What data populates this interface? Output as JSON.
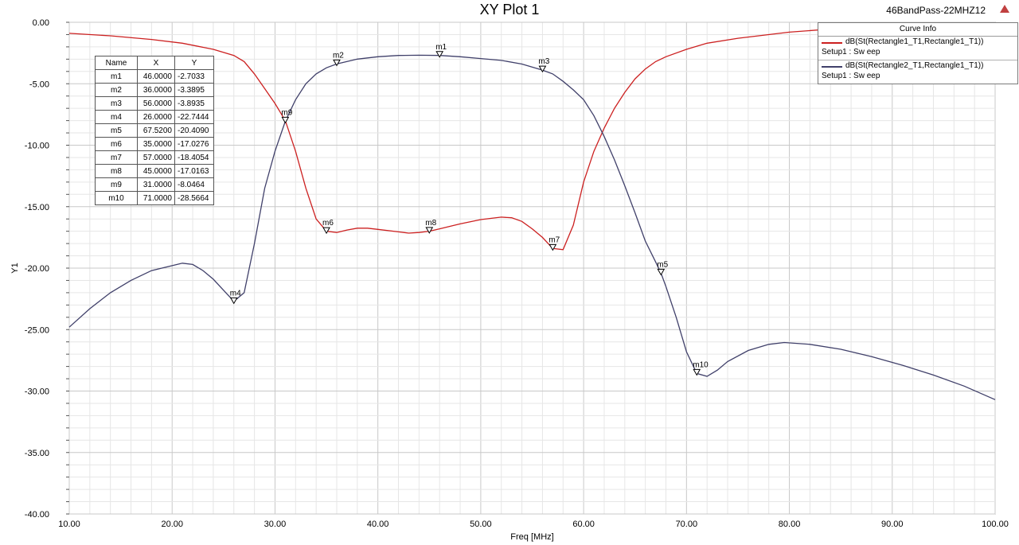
{
  "chart_data": {
    "type": "line",
    "title": "XY Plot 1",
    "project_name": "46BandPass-22MHZ12",
    "xlabel": "Freq [MHz]",
    "ylabel": "Y1",
    "xlim": [
      10,
      100
    ],
    "ylim": [
      -40,
      0
    ],
    "x_ticks": [
      "10.00",
      "20.00",
      "30.00",
      "40.00",
      "50.00",
      "60.00",
      "70.00",
      "80.00",
      "90.00",
      "100.00"
    ],
    "y_ticks": [
      "0.00",
      "-5.00",
      "-10.00",
      "-15.00",
      "-20.00",
      "-25.00",
      "-30.00",
      "-35.00",
      "-40.00"
    ],
    "grid": true,
    "legend": {
      "title": "Curve Info",
      "placement": "top-right",
      "entries": [
        {
          "name": "dB(St(Rectangle1_T1,Rectangle1_T1))",
          "sub": "Setup1 : Sw eep",
          "color": "#cc2020"
        },
        {
          "name": "dB(St(Rectangle2_T1,Rectangle1_T1))",
          "sub": "Setup1 : Sw eep",
          "color": "#40406a"
        }
      ]
    },
    "series": [
      {
        "color": "#cc2020",
        "points": [
          [
            10,
            -0.9
          ],
          [
            14,
            -1.1
          ],
          [
            18,
            -1.4
          ],
          [
            21,
            -1.7
          ],
          [
            24,
            -2.2
          ],
          [
            26,
            -2.7
          ],
          [
            27,
            -3.2
          ],
          [
            28,
            -4.2
          ],
          [
            29,
            -5.4
          ],
          [
            30,
            -6.6
          ],
          [
            31,
            -8.0
          ],
          [
            32,
            -10.5
          ],
          [
            33,
            -13.5
          ],
          [
            34,
            -16.0
          ],
          [
            35,
            -17.0
          ],
          [
            36,
            -17.1
          ],
          [
            37,
            -16.9
          ],
          [
            38,
            -16.75
          ],
          [
            39,
            -16.75
          ],
          [
            40,
            -16.85
          ],
          [
            42,
            -17.05
          ],
          [
            43,
            -17.15
          ],
          [
            44,
            -17.1
          ],
          [
            45,
            -17.0
          ],
          [
            46,
            -16.8
          ],
          [
            48,
            -16.4
          ],
          [
            50,
            -16.05
          ],
          [
            52,
            -15.85
          ],
          [
            53,
            -15.9
          ],
          [
            54,
            -16.2
          ],
          [
            55,
            -16.8
          ],
          [
            56,
            -17.5
          ],
          [
            57,
            -18.4
          ],
          [
            58,
            -18.5
          ],
          [
            59,
            -16.5
          ],
          [
            60,
            -13.0
          ],
          [
            61,
            -10.5
          ],
          [
            62,
            -8.6
          ],
          [
            63,
            -7.0
          ],
          [
            64,
            -5.7
          ],
          [
            65,
            -4.6
          ],
          [
            66,
            -3.8
          ],
          [
            67,
            -3.2
          ],
          [
            68,
            -2.8
          ],
          [
            70,
            -2.2
          ],
          [
            72,
            -1.7
          ],
          [
            75,
            -1.3
          ],
          [
            80,
            -0.8
          ],
          [
            84,
            -0.55
          ]
        ]
      },
      {
        "color": "#40406a",
        "points": [
          [
            10,
            -24.8
          ],
          [
            12,
            -23.3
          ],
          [
            14,
            -22.0
          ],
          [
            16,
            -21.0
          ],
          [
            18,
            -20.2
          ],
          [
            20,
            -19.8
          ],
          [
            21,
            -19.6
          ],
          [
            22,
            -19.7
          ],
          [
            23,
            -20.2
          ],
          [
            24,
            -20.9
          ],
          [
            25,
            -21.8
          ],
          [
            26,
            -22.7
          ],
          [
            27,
            -22.0
          ],
          [
            28,
            -18.0
          ],
          [
            29,
            -13.5
          ],
          [
            30,
            -10.5
          ],
          [
            31,
            -8.05
          ],
          [
            32,
            -6.3
          ],
          [
            33,
            -5.0
          ],
          [
            34,
            -4.2
          ],
          [
            35,
            -3.7
          ],
          [
            36,
            -3.39
          ],
          [
            38,
            -3.0
          ],
          [
            40,
            -2.8
          ],
          [
            42,
            -2.7
          ],
          [
            44,
            -2.68
          ],
          [
            46,
            -2.7
          ],
          [
            48,
            -2.8
          ],
          [
            50,
            -2.95
          ],
          [
            52,
            -3.1
          ],
          [
            54,
            -3.4
          ],
          [
            56,
            -3.89
          ],
          [
            57,
            -4.2
          ],
          [
            58,
            -4.8
          ],
          [
            59,
            -5.5
          ],
          [
            60,
            -6.3
          ],
          [
            61,
            -7.6
          ],
          [
            62,
            -9.3
          ],
          [
            63,
            -11.2
          ],
          [
            64,
            -13.3
          ],
          [
            65,
            -15.5
          ],
          [
            66,
            -17.8
          ],
          [
            67,
            -19.5
          ],
          [
            67.52,
            -20.41
          ],
          [
            68,
            -21.5
          ],
          [
            69,
            -24.0
          ],
          [
            70,
            -26.8
          ],
          [
            71,
            -28.57
          ],
          [
            72,
            -28.8
          ],
          [
            73,
            -28.3
          ],
          [
            74,
            -27.6
          ],
          [
            76,
            -26.7
          ],
          [
            78,
            -26.2
          ],
          [
            79.5,
            -26.05
          ],
          [
            82,
            -26.2
          ],
          [
            85,
            -26.6
          ],
          [
            88,
            -27.2
          ],
          [
            91,
            -27.9
          ],
          [
            94,
            -28.7
          ],
          [
            97,
            -29.6
          ],
          [
            100,
            -30.7
          ]
        ]
      }
    ],
    "markers": [
      {
        "name": "m1",
        "x": 46.0,
        "y": -2.7033,
        "curve": 1
      },
      {
        "name": "m2",
        "x": 36.0,
        "y": -3.3895,
        "curve": 1
      },
      {
        "name": "m3",
        "x": 56.0,
        "y": -3.8935,
        "curve": 1
      },
      {
        "name": "m4",
        "x": 26.0,
        "y": -22.7444,
        "curve": 1
      },
      {
        "name": "m5",
        "x": 67.52,
        "y": -20.409,
        "curve": 1
      },
      {
        "name": "m6",
        "x": 35.0,
        "y": -17.0276,
        "curve": 0
      },
      {
        "name": "m7",
        "x": 57.0,
        "y": -18.4054,
        "curve": 0
      },
      {
        "name": "m8",
        "x": 45.0,
        "y": -17.0163,
        "curve": 0
      },
      {
        "name": "m9",
        "x": 31.0,
        "y": -8.0464,
        "curve": 0
      },
      {
        "name": "m10",
        "x": 71.0,
        "y": -28.5664,
        "curve": 1
      }
    ],
    "marker_table": {
      "headers": [
        "Name",
        "X",
        "Y"
      ],
      "rows": [
        [
          "m1",
          "46.0000",
          "-2.7033"
        ],
        [
          "m2",
          "36.0000",
          "-3.3895"
        ],
        [
          "m3",
          "56.0000",
          "-3.8935"
        ],
        [
          "m4",
          "26.0000",
          "-22.7444"
        ],
        [
          "m5",
          "67.5200",
          "-20.4090"
        ],
        [
          "m6",
          "35.0000",
          "-17.0276"
        ],
        [
          "m7",
          "57.0000",
          "-18.4054"
        ],
        [
          "m8",
          "45.0000",
          "-17.0163"
        ],
        [
          "m9",
          "31.0000",
          "-8.0464"
        ],
        [
          "m10",
          "71.0000",
          "-28.5664"
        ]
      ]
    }
  }
}
